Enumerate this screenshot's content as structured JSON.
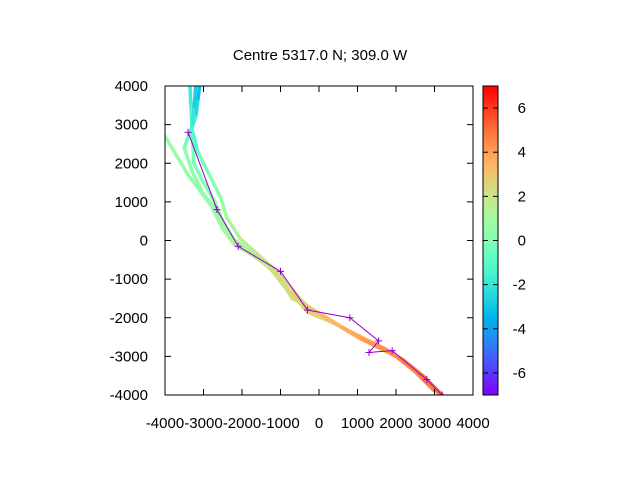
{
  "chart_data": {
    "type": "scatter",
    "title": "Centre 5317.0 N; 309.0  W",
    "xlabel": "",
    "ylabel": "",
    "xlim": [
      -4000,
      4000
    ],
    "ylim": [
      -4000,
      4000
    ],
    "x_ticks": [
      -4000,
      -3000,
      -2000,
      -1000,
      0,
      1000,
      2000,
      3000,
      4000
    ],
    "y_ticks": [
      -4000,
      -3000,
      -2000,
      -1000,
      0,
      1000,
      2000,
      3000,
      4000
    ],
    "x_tick_labels": [
      "-4000",
      "-3000",
      "-2000",
      "-1000",
      "0",
      "1000",
      "2000",
      "3000",
      "4000"
    ],
    "y_tick_labels": [
      "-4000",
      "-3000",
      "-2000",
      "-1000",
      "0",
      "1000",
      "2000",
      "3000",
      "4000"
    ],
    "grid": false,
    "colorbar": {
      "range": [
        -7,
        7
      ],
      "ticks": [
        -6,
        -4,
        -2,
        0,
        2,
        4,
        6
      ],
      "tick_labels": [
        "-6",
        "-4",
        "-2",
        "0",
        "2",
        "4",
        "6"
      ],
      "colormap": "rainbow"
    },
    "series": [
      {
        "kind": "track",
        "points": [
          [
            -3350,
            4000,
            -2
          ],
          [
            -3330,
            3500,
            -1.5
          ],
          [
            -3300,
            3000,
            -1
          ],
          [
            -3280,
            2500,
            -0.5
          ],
          [
            -3250,
            2000,
            0
          ],
          [
            -3000,
            1500,
            0
          ],
          [
            -2700,
            1000,
            0.3
          ],
          [
            -2500,
            500,
            0.5
          ],
          [
            -2200,
            0,
            0.8
          ],
          [
            -1800,
            -300,
            1.0
          ],
          [
            -1400,
            -600,
            1.5
          ],
          [
            -1000,
            -900,
            2.2
          ],
          [
            -500,
            -1500,
            2.5
          ],
          [
            -200,
            -1800,
            2.6
          ],
          [
            500,
            -2200,
            3.0
          ],
          [
            1000,
            -2500,
            3.5
          ],
          [
            1500,
            -2750,
            4.0
          ],
          [
            2000,
            -3000,
            4.3
          ],
          [
            2500,
            -3400,
            4.5
          ],
          [
            3200,
            -4000,
            4.8
          ]
        ]
      },
      {
        "kind": "track",
        "points": [
          [
            -3100,
            4000,
            -3.5
          ],
          [
            -3150,
            3600,
            -3
          ],
          [
            -3200,
            3200,
            -2
          ],
          [
            -3350,
            2800,
            -1
          ],
          [
            -3500,
            2400,
            0
          ],
          [
            -3300,
            1800,
            0.5
          ],
          [
            -3000,
            1200,
            0.5
          ],
          [
            -2600,
            700,
            0.8
          ],
          [
            -2300,
            100,
            1.0
          ],
          [
            -1900,
            -200,
            1.2
          ],
          [
            -1500,
            -500,
            1.8
          ],
          [
            -1200,
            -800,
            2.0
          ],
          [
            -900,
            -1200,
            2.2
          ],
          [
            -600,
            -1500,
            2.4
          ],
          [
            -300,
            -1850,
            2.5
          ],
          [
            300,
            -2100,
            3.0
          ],
          [
            900,
            -2400,
            3.4
          ],
          [
            1400,
            -2650,
            3.8
          ],
          [
            1900,
            -2900,
            4.2
          ],
          [
            2400,
            -3300,
            4.4
          ],
          [
            3000,
            -3900,
            4.6
          ]
        ]
      },
      {
        "kind": "track",
        "points": [
          [
            -4000,
            2700,
            0.5
          ],
          [
            -3700,
            2200,
            0.8
          ],
          [
            -3400,
            1700,
            0.5
          ],
          [
            -3100,
            1300,
            0.4
          ],
          [
            -2800,
            900,
            0.6
          ],
          [
            -2500,
            300,
            1.0
          ],
          [
            -2200,
            -100,
            1.2
          ],
          [
            -1700,
            -400,
            1.6
          ],
          [
            -1300,
            -700,
            2.0
          ],
          [
            -1000,
            -1000,
            2.4
          ],
          [
            -700,
            -1500,
            2.0
          ],
          [
            -300,
            -1700,
            2.8
          ],
          [
            200,
            -2000,
            3.2
          ],
          [
            700,
            -2300,
            3.6
          ],
          [
            1200,
            -2600,
            4.0
          ],
          [
            1700,
            -2800,
            4.4
          ],
          [
            2200,
            -3100,
            4.6
          ],
          [
            2700,
            -3500,
            4.8
          ],
          [
            3200,
            -4000,
            5.0
          ]
        ]
      },
      {
        "kind": "track",
        "points": [
          [
            -3200,
            4000,
            -3.2
          ],
          [
            -3250,
            3400,
            -2.5
          ],
          [
            -3300,
            2900,
            -1.5
          ],
          [
            -3150,
            2300,
            -0.8
          ],
          [
            -2850,
            1700,
            0.2
          ],
          [
            -2550,
            1100,
            0.4
          ],
          [
            -2400,
            600,
            1.2
          ],
          [
            -2050,
            50,
            1.4
          ],
          [
            -1600,
            -350,
            1.8
          ],
          [
            -1150,
            -750,
            2.0
          ],
          [
            -800,
            -1300,
            2.6
          ],
          [
            -400,
            -1650,
            2.8
          ],
          [
            100,
            -1950,
            3.2
          ],
          [
            600,
            -2250,
            3.6
          ],
          [
            1100,
            -2550,
            4.0
          ],
          [
            1600,
            -2750,
            4.2
          ],
          [
            2100,
            -3050,
            4.5
          ],
          [
            2600,
            -3450,
            4.7
          ],
          [
            3100,
            -3950,
            5.0
          ]
        ]
      }
    ],
    "waypoints": [
      [
        -3400,
        2800
      ],
      [
        -2650,
        800
      ],
      [
        -2100,
        -150
      ],
      [
        -1000,
        -800
      ],
      [
        -300,
        -1800
      ],
      [
        800,
        -2000
      ],
      [
        1550,
        -2600
      ],
      [
        1300,
        -2900
      ],
      [
        1900,
        -2850
      ],
      [
        2800,
        -3600
      ],
      [
        3200,
        -4000
      ]
    ]
  }
}
